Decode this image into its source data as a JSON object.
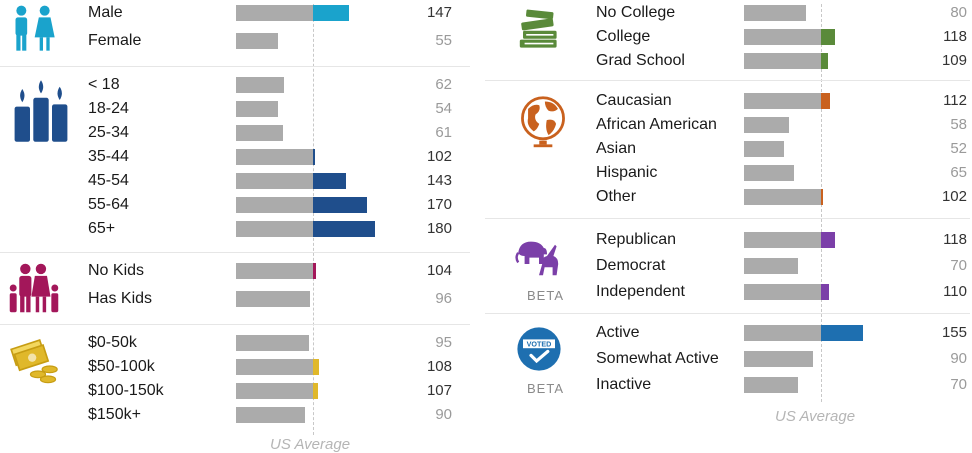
{
  "chart_data": {
    "type": "bar",
    "orientation": "horizontal",
    "reference_value": 100,
    "reference_label": "US Average",
    "panels": [
      {
        "groups": [
          {
            "icon": "gender-icon",
            "color": "#1aa3cc",
            "beta": "",
            "categories": [
              "Male",
              "Female"
            ],
            "values": [
              147,
              55
            ]
          },
          {
            "icon": "age-candles-icon",
            "color": "#1f4e8c",
            "beta": "",
            "categories": [
              "< 18",
              "18-24",
              "25-34",
              "35-44",
              "45-54",
              "55-64",
              "65+"
            ],
            "values": [
              62,
              54,
              61,
              102,
              143,
              170,
              180
            ]
          },
          {
            "icon": "family-icon",
            "color": "#a3175a",
            "beta": "",
            "categories": [
              "No Kids",
              "Has Kids"
            ],
            "values": [
              104,
              96
            ]
          },
          {
            "icon": "money-icon",
            "color": "#e0b82a",
            "beta": "",
            "categories": [
              "$0-50k",
              "$50-100k",
              "$100-150k",
              "$150k+"
            ],
            "values": [
              95,
              108,
              107,
              90
            ]
          }
        ]
      },
      {
        "groups": [
          {
            "icon": "books-icon",
            "color": "#5a8a3a",
            "beta": "",
            "categories": [
              "No College",
              "College",
              "Grad School"
            ],
            "values": [
              80,
              118,
              109
            ]
          },
          {
            "icon": "globe-icon",
            "color": "#c9611e",
            "beta": "",
            "categories": [
              "Caucasian",
              "African American",
              "Asian",
              "Hispanic",
              "Other"
            ],
            "values": [
              112,
              58,
              52,
              65,
              102
            ]
          },
          {
            "icon": "elephant-donkey-icon",
            "color": "#7b3fa8",
            "beta": "BETA",
            "categories": [
              "Republican",
              "Democrat",
              "Independent"
            ],
            "values": [
              118,
              70,
              110
            ]
          },
          {
            "icon": "voted-icon",
            "color": "#1e6fb0",
            "beta": "BETA",
            "categories": [
              "Active",
              "Somewhat Active",
              "Inactive"
            ],
            "values": [
              155,
              90,
              70
            ]
          }
        ]
      }
    ]
  }
}
